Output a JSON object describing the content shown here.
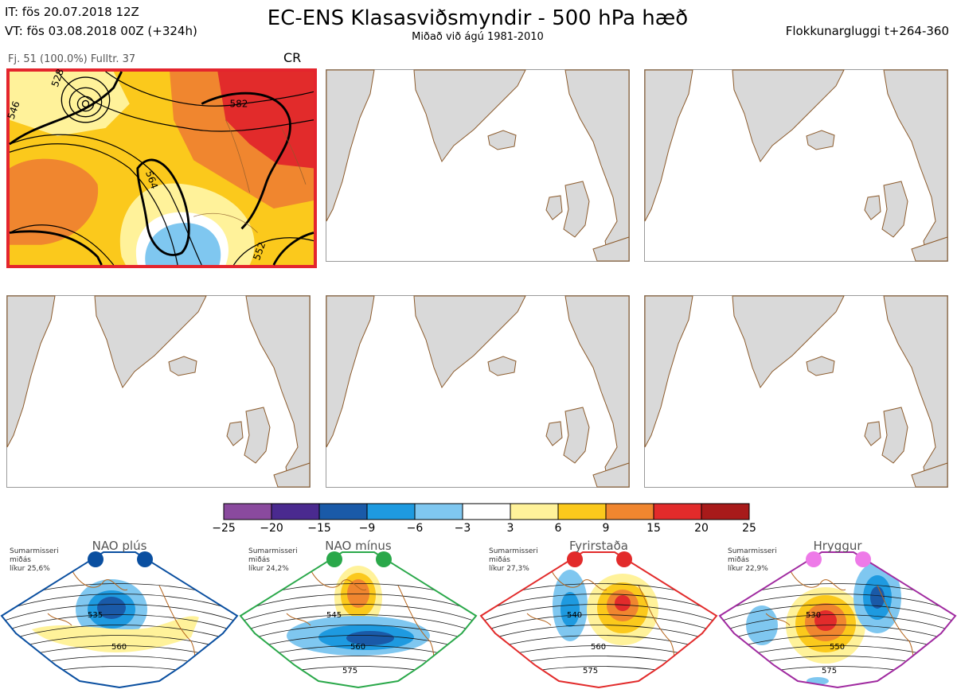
{
  "header": {
    "it_line": "IT: fös 20.07.2018 12Z",
    "vt_line": "VT: fös 03.08.2018 00Z  (+324h)",
    "title": "EC-ENS Klasasviðsmyndir - 500 hPa hæð",
    "subtitle": "Miðað við ágú 1981-2010",
    "window": "Flokkunargluggi t+264-360"
  },
  "panel1": {
    "info": "Fj. 51 (100.0%)   Fulltr. 37",
    "regime_code": "CR",
    "contour_labels": [
      "582",
      "564",
      "546",
      "552",
      "528"
    ]
  },
  "colorbar": {
    "colors": [
      "#8a4a9e",
      "#4a2a8f",
      "#1a5aa8",
      "#1e9ae0",
      "#7fc7f0",
      "#ffffff",
      "#fff29a",
      "#fbc91c",
      "#f0862f",
      "#e22b2b",
      "#a81a1a"
    ],
    "ticks": [
      "−25",
      "−20",
      "−15",
      "−9",
      "−6",
      "−3",
      "3",
      "6",
      "9",
      "15",
      "20",
      "25"
    ]
  },
  "regimes": [
    {
      "name": "NAO plús",
      "season": "Sumarmisseri",
      "stat": "miðás",
      "prob": "líkur 25,6%",
      "color": "#0a4fa0",
      "labels": [
        "535",
        "560"
      ]
    },
    {
      "name": "NAO mínus",
      "season": "Sumarmisseri",
      "stat": "miðás",
      "prob": "líkur 24,2%",
      "color": "#2aa84a",
      "labels": [
        "545",
        "560",
        "575"
      ]
    },
    {
      "name": "Fyrirstaða",
      "season": "Sumarmisseri",
      "stat": "miðás",
      "prob": "líkur 27,3%",
      "color": "#e22b2b",
      "labels": [
        "540",
        "560",
        "575"
      ]
    },
    {
      "name": "Hryggur",
      "season": "Sumarmisseri",
      "stat": "miðás",
      "prob": "líkur 22,9%",
      "color": "#a02aa0",
      "labels": [
        "530",
        "550",
        "575"
      ]
    }
  ]
}
